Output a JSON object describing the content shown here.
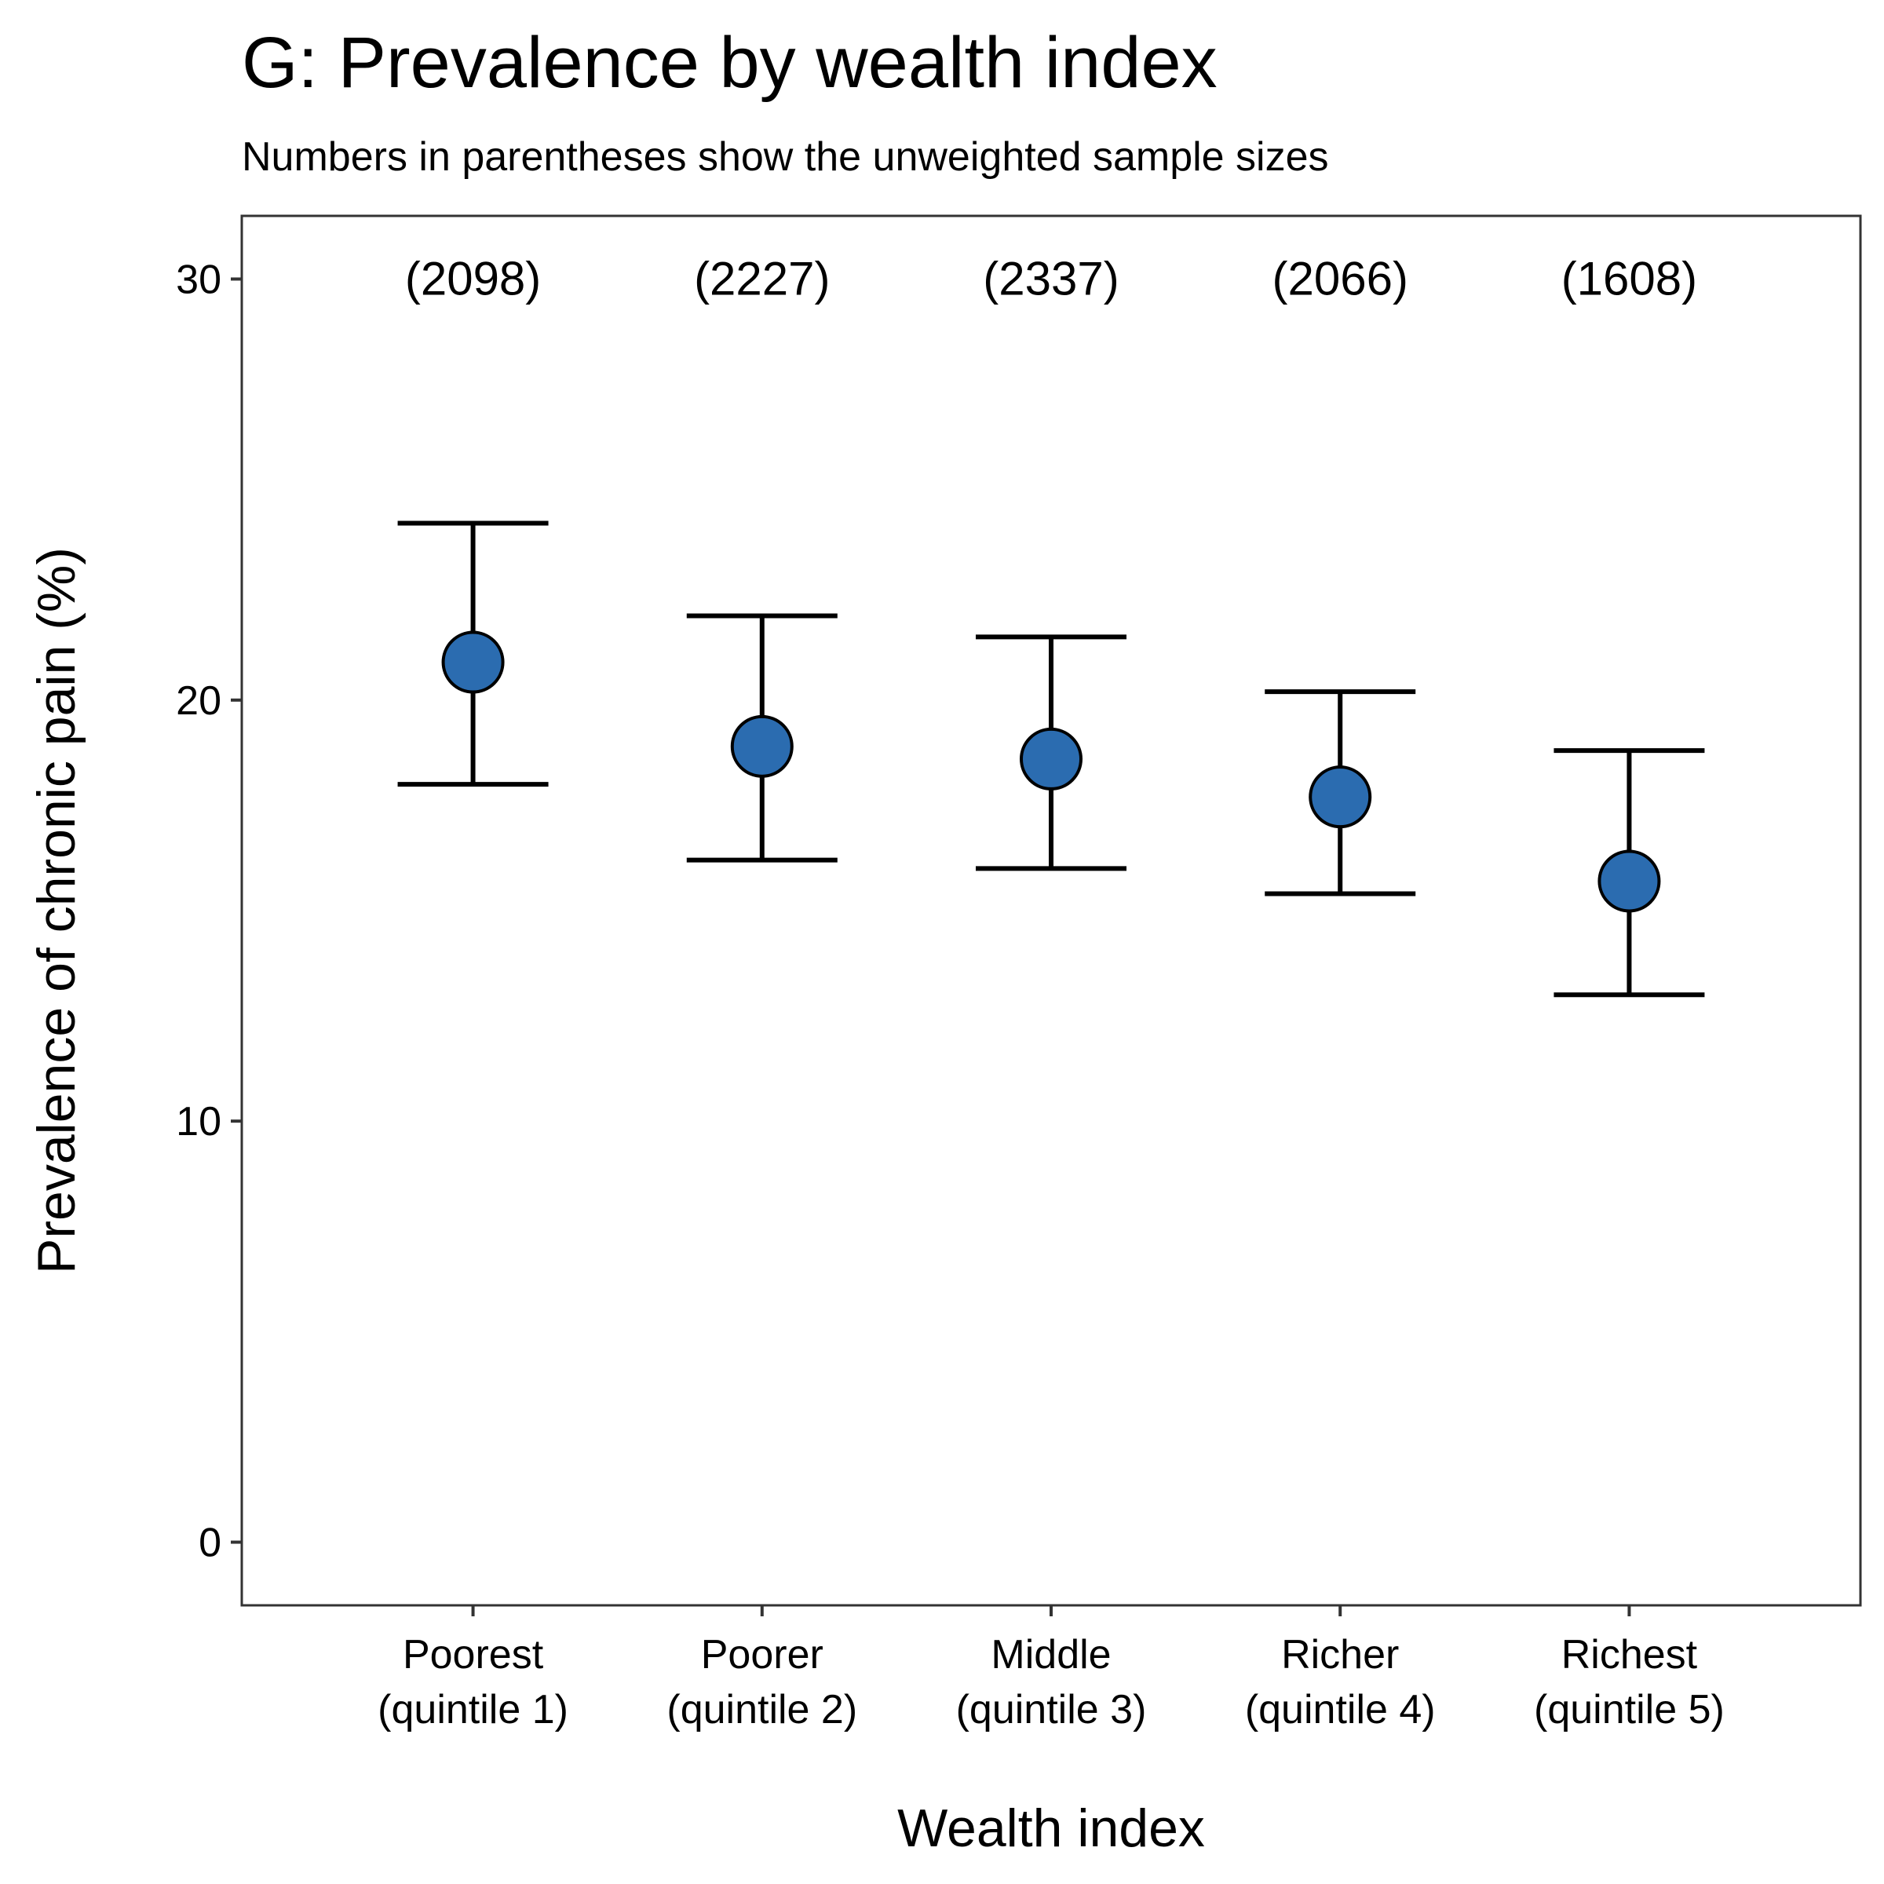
{
  "chart_data": {
    "type": "scatter",
    "title": "G: Prevalence by wealth index",
    "subtitle": "Numbers in parentheses show the unweighted sample sizes",
    "xlabel": "Wealth index",
    "ylabel": "Prevalence of chronic pain (%)",
    "ylim": [
      -1.5,
      31.5
    ],
    "yticks": [
      0,
      10,
      20,
      30
    ],
    "grid": false,
    "legend": "none",
    "point_color": "#2b6cb0",
    "categories": [
      {
        "label_line1": "Poorest",
        "label_line2": "(quintile 1)"
      },
      {
        "label_line1": "Poorer",
        "label_line2": "(quintile 2)"
      },
      {
        "label_line1": "Middle",
        "label_line2": "(quintile 3)"
      },
      {
        "label_line1": "Richer",
        "label_line2": "(quintile 4)"
      },
      {
        "label_line1": "Richest",
        "label_line2": "(quintile 5)"
      }
    ],
    "values": [
      20.9,
      18.9,
      18.6,
      17.7,
      15.7
    ],
    "ci_lower": [
      18.0,
      16.2,
      16.0,
      15.4,
      13.0
    ],
    "ci_upper": [
      24.2,
      22.0,
      21.5,
      20.2,
      18.8
    ],
    "sample_size_labels": [
      "(2098)",
      "(2227)",
      "(2337)",
      "(2066)",
      "(1608)"
    ],
    "sample_size_label_y": 30
  }
}
